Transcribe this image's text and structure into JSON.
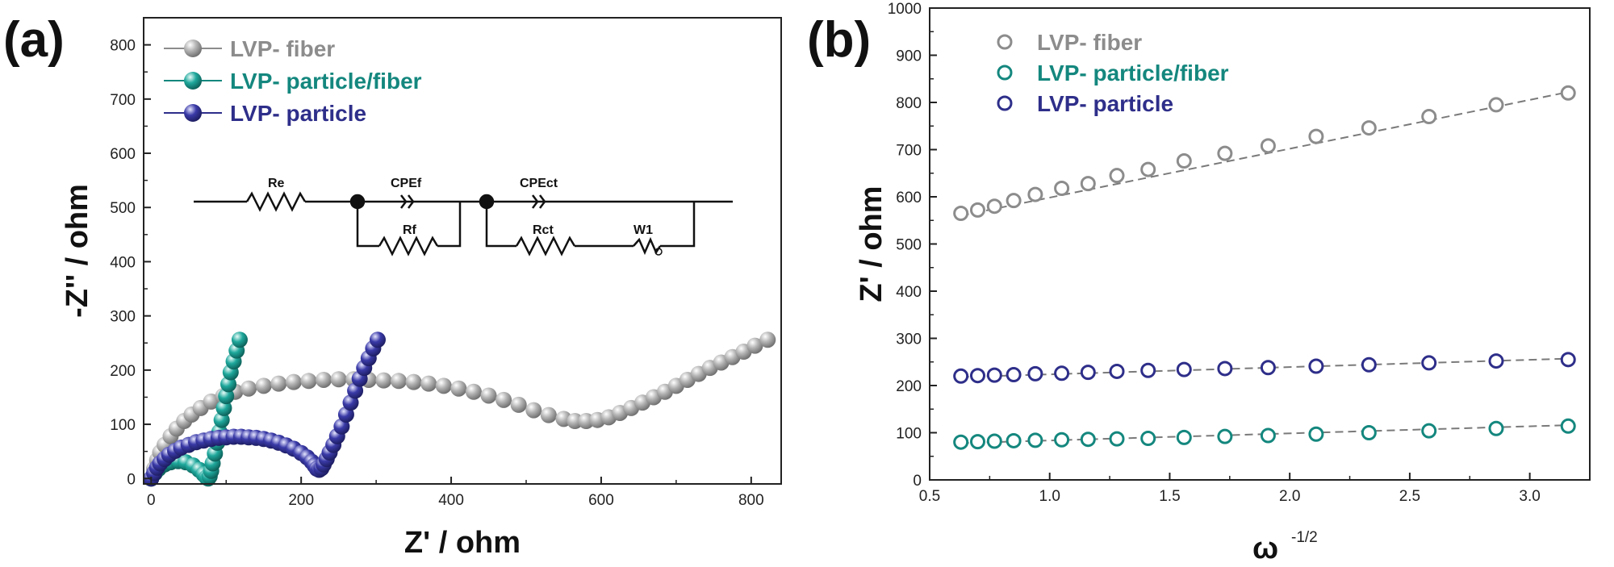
{
  "colors": {
    "fiber": "#8c8c8c",
    "particle_fiber": "#14877e",
    "particle": "#2e2e8a",
    "fit_line": "#7a7a7a"
  },
  "panels": {
    "a": {
      "label": "(a)"
    },
    "b": {
      "label": "(b)"
    }
  },
  "circuit": {
    "labels": [
      "Re",
      "CPEf",
      "Rf",
      "CPEct",
      "Rct",
      "W1"
    ]
  },
  "chart_data": [
    {
      "type": "scatter",
      "panel": "a",
      "xlabel": "Z' / ohm",
      "ylabel": "-Z'' / ohm",
      "xlim": [
        -10,
        840
      ],
      "ylim": [
        -10,
        850
      ],
      "xticks": [
        0,
        200,
        400,
        600,
        800
      ],
      "yticks": [
        0,
        100,
        200,
        300,
        400,
        500,
        600,
        700,
        800
      ],
      "legend_position": "top-left",
      "series": [
        {
          "name": "LVP- fiber",
          "color_key": "fiber",
          "points": [
            [
              0,
              0
            ],
            [
              4,
              18
            ],
            [
              8,
              34
            ],
            [
              12,
              48
            ],
            [
              18,
              62
            ],
            [
              26,
              78
            ],
            [
              34,
              92
            ],
            [
              44,
              106
            ],
            [
              54,
              118
            ],
            [
              66,
              130
            ],
            [
              80,
              142
            ],
            [
              96,
              152
            ],
            [
              112,
              160
            ],
            [
              130,
              166
            ],
            [
              150,
              171
            ],
            [
              170,
              175
            ],
            [
              190,
              178
            ],
            [
              210,
              180
            ],
            [
              230,
              182
            ],
            [
              250,
              183
            ],
            [
              270,
              183
            ],
            [
              290,
              182
            ],
            [
              310,
              181
            ],
            [
              330,
              180
            ],
            [
              350,
              178
            ],
            [
              370,
              175
            ],
            [
              390,
              171
            ],
            [
              410,
              166
            ],
            [
              430,
              160
            ],
            [
              450,
              153
            ],
            [
              470,
              145
            ],
            [
              490,
              136
            ],
            [
              510,
              126
            ],
            [
              530,
              117
            ],
            [
              550,
              110
            ],
            [
              565,
              106
            ],
            [
              580,
              106
            ],
            [
              595,
              108
            ],
            [
              610,
              113
            ],
            [
              625,
              121
            ],
            [
              640,
              130
            ],
            [
              655,
              140
            ],
            [
              670,
              150
            ],
            [
              685,
              160
            ],
            [
              700,
              171
            ],
            [
              715,
              182
            ],
            [
              730,
              193
            ],
            [
              745,
              204
            ],
            [
              760,
              214
            ],
            [
              775,
              224
            ],
            [
              790,
              234
            ],
            [
              805,
              245
            ],
            [
              822,
              256
            ]
          ]
        },
        {
          "name": "LVP- particle/fiber",
          "color_key": "particle_fiber",
          "points": [
            [
              0,
              0
            ],
            [
              5,
              10
            ],
            [
              10,
              18
            ],
            [
              18,
              26
            ],
            [
              26,
              30
            ],
            [
              36,
              32
            ],
            [
              46,
              30
            ],
            [
              56,
              24
            ],
            [
              64,
              16
            ],
            [
              70,
              8
            ],
            [
              74,
              2
            ],
            [
              76,
              0
            ],
            [
              78,
              4
            ],
            [
              80,
              14
            ],
            [
              82,
              28
            ],
            [
              85,
              46
            ],
            [
              88,
              66
            ],
            [
              91,
              86
            ],
            [
              94,
              108
            ],
            [
              97,
              130
            ],
            [
              100,
              152
            ],
            [
              103,
              174
            ],
            [
              106,
              196
            ],
            [
              110,
              216
            ],
            [
              114,
              236
            ],
            [
              118,
              256
            ]
          ]
        },
        {
          "name": "LVP- particle",
          "color_key": "particle",
          "points": [
            [
              0,
              0
            ],
            [
              4,
              10
            ],
            [
              8,
              20
            ],
            [
              12,
              28
            ],
            [
              18,
              36
            ],
            [
              24,
              44
            ],
            [
              32,
              51
            ],
            [
              40,
              57
            ],
            [
              50,
              62
            ],
            [
              60,
              67
            ],
            [
              70,
              70
            ],
            [
              80,
              73
            ],
            [
              90,
              75
            ],
            [
              100,
              76
            ],
            [
              110,
              77
            ],
            [
              120,
              77
            ],
            [
              130,
              76
            ],
            [
              140,
              75
            ],
            [
              150,
              73
            ],
            [
              160,
              70
            ],
            [
              170,
              66
            ],
            [
              180,
              61
            ],
            [
              190,
              55
            ],
            [
              200,
              47
            ],
            [
              208,
              39
            ],
            [
              214,
              31
            ],
            [
              218,
              24
            ],
            [
              221,
              18
            ],
            [
              224,
              16
            ],
            [
              227,
              19
            ],
            [
              230,
              26
            ],
            [
              234,
              36
            ],
            [
              238,
              48
            ],
            [
              243,
              62
            ],
            [
              248,
              78
            ],
            [
              254,
              96
            ],
            [
              260,
              118
            ],
            [
              266,
              140
            ],
            [
              272,
              162
            ],
            [
              278,
              184
            ],
            [
              284,
              204
            ],
            [
              290,
              222
            ],
            [
              296,
              240
            ],
            [
              302,
              256
            ]
          ]
        }
      ]
    },
    {
      "type": "scatter",
      "panel": "b",
      "xlabel": "ω",
      "xlabel_superscript": "-1/2",
      "ylabel": "Z' / ohm",
      "xlim": [
        0.5,
        3.25
      ],
      "ylim": [
        0,
        1000
      ],
      "xticks": [
        0.5,
        1.0,
        1.5,
        2.0,
        2.5,
        3.0
      ],
      "xtick_labels": [
        "0.5",
        "1.0",
        "1.5",
        "2.0",
        "2.5",
        "3.0"
      ],
      "yticks": [
        0,
        100,
        200,
        300,
        400,
        500,
        600,
        700,
        800,
        900,
        1000
      ],
      "legend_position": "top-left",
      "series": [
        {
          "name": "LVP- fiber",
          "color_key": "fiber",
          "x": [
            0.63,
            0.7,
            0.77,
            0.85,
            0.94,
            1.05,
            1.16,
            1.28,
            1.41,
            1.56,
            1.73,
            1.91,
            2.11,
            2.33,
            2.58,
            2.86,
            3.16
          ],
          "values": [
            565,
            572,
            580,
            592,
            605,
            618,
            628,
            645,
            658,
            676,
            692,
            708,
            728,
            746,
            770,
            795,
            820
          ],
          "fit": [
            [
              0.63,
              560
            ],
            [
              3.16,
              822
            ]
          ]
        },
        {
          "name": "LVP- particle/fiber",
          "color_key": "particle_fiber",
          "x": [
            0.63,
            0.7,
            0.77,
            0.85,
            0.94,
            1.05,
            1.16,
            1.28,
            1.41,
            1.56,
            1.73,
            1.91,
            2.11,
            2.33,
            2.58,
            2.86,
            3.16
          ],
          "values": [
            80,
            81,
            82,
            83,
            84,
            85,
            86,
            87,
            88,
            90,
            92,
            94,
            97,
            100,
            104,
            109,
            114
          ],
          "fit": [
            [
              0.63,
              78
            ],
            [
              3.16,
              116
            ]
          ]
        },
        {
          "name": "LVP- particle",
          "color_key": "particle",
          "x": [
            0.63,
            0.7,
            0.77,
            0.85,
            0.94,
            1.05,
            1.16,
            1.28,
            1.41,
            1.56,
            1.73,
            1.91,
            2.11,
            2.33,
            2.58,
            2.86,
            3.16
          ],
          "values": [
            220,
            221,
            222,
            223,
            225,
            226,
            228,
            230,
            232,
            234,
            236,
            238,
            241,
            244,
            248,
            252,
            255
          ],
          "fit": [
            [
              0.63,
              218
            ],
            [
              3.16,
              257
            ]
          ]
        }
      ]
    }
  ]
}
